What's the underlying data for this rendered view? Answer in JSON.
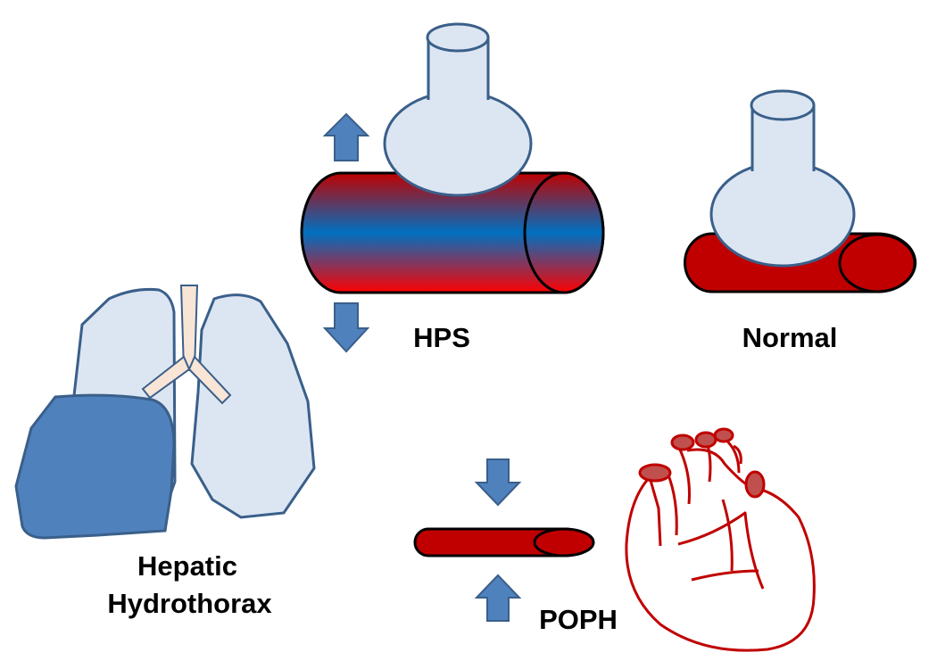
{
  "labels": {
    "hps": "HPS",
    "normal": "Normal",
    "hepatic_line1": "Hepatic",
    "hepatic_line2": "Hydrothorax",
    "poph": "POPH"
  },
  "colors": {
    "alveolus_fill": "#dce6f2",
    "outline_blue": "#3a5f8a",
    "arrow_blue": "#4f81bd",
    "vessel_red": "#c00000",
    "vessel_blue": "#0070c0",
    "vessel_bright_red": "#ff0000",
    "lung_fill": "#dce6f2",
    "effusion_fill": "#4f81bd",
    "trachea_fill": "#f8e5d6",
    "heart_red": "#c00000",
    "text": "#000000"
  }
}
